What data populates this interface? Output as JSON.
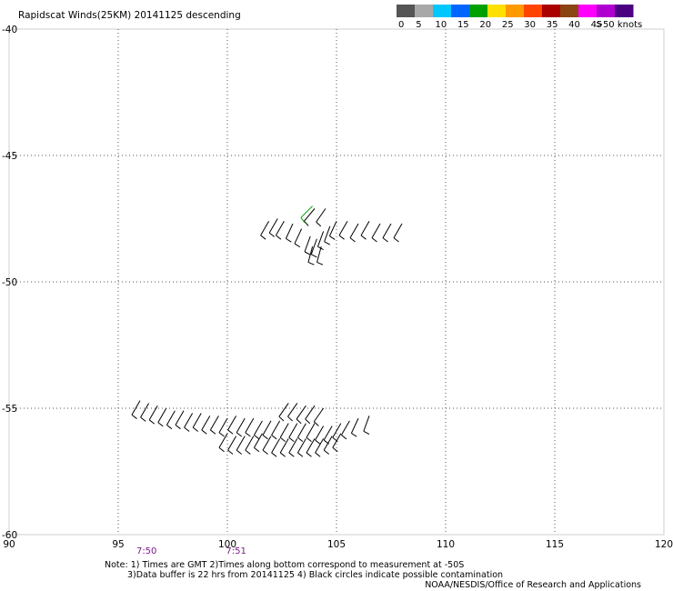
{
  "chart_data": {
    "type": "scatter",
    "title": "Rapidscat Winds(25KM) 20141125 descending",
    "xlabel": "",
    "ylabel": "",
    "xlim": [
      90,
      120
    ],
    "ylim": [
      -60,
      -40
    ],
    "x_ticks": [
      "90",
      "95",
      "100",
      "105",
      "110",
      "115",
      "120"
    ],
    "y_ticks": [
      "-40",
      "-45",
      "-50",
      "-55",
      "-60"
    ],
    "grid": true,
    "time_labels": [
      {
        "x": 96.3,
        "label": "7:50"
      },
      {
        "x": 100.4,
        "label": "7:51"
      }
    ],
    "legend": {
      "labels": [
        "0",
        "5",
        "10",
        "15",
        "20",
        "25",
        "30",
        "35",
        "40",
        "45",
        ">50 knots"
      ],
      "colors": [
        "#555555",
        "#a8a8a8",
        "#00c8ff",
        "#0066ff",
        "#00a000",
        "#ffe000",
        "#ff9900",
        "#ff4400",
        "#aa0000",
        "#8b4513",
        "#ff00ff",
        "#b000d0",
        "#4b0082"
      ]
    },
    "wind_barb_series": [
      {
        "name": "",
        "points": [
          {
            "lon": 101.9,
            "lat": -47.6,
            "dir": 240
          },
          {
            "lon": 102.3,
            "lat": -47.5,
            "dir": 240
          },
          {
            "lon": 102.6,
            "lat": -47.6,
            "dir": 240
          },
          {
            "lon": 103.0,
            "lat": -47.7,
            "dir": 245
          },
          {
            "lon": 103.4,
            "lat": -47.9,
            "dir": 245
          },
          {
            "lon": 103.8,
            "lat": -48.2,
            "dir": 250
          },
          {
            "lon": 104.1,
            "lat": -48.3,
            "dir": 250
          },
          {
            "lon": 104.4,
            "lat": -48.0,
            "dir": 250
          },
          {
            "lon": 104.7,
            "lat": -47.8,
            "dir": 250
          },
          {
            "lon": 105.0,
            "lat": -47.6,
            "dir": 245
          },
          {
            "lon": 105.5,
            "lat": -47.6,
            "dir": 240
          },
          {
            "lon": 106.0,
            "lat": -47.7,
            "dir": 240
          },
          {
            "lon": 106.5,
            "lat": -47.6,
            "dir": 240
          },
          {
            "lon": 107.0,
            "lat": -47.7,
            "dir": 240
          },
          {
            "lon": 107.5,
            "lat": -47.7,
            "dir": 240
          },
          {
            "lon": 108.0,
            "lat": -47.7,
            "dir": 240
          },
          {
            "lon": 104.0,
            "lat": -47.1,
            "dir": 230
          },
          {
            "lon": 104.5,
            "lat": -47.1,
            "dir": 235
          },
          {
            "lon": 103.9,
            "lat": -48.6,
            "dir": 255
          },
          {
            "lon": 104.3,
            "lat": -48.6,
            "dir": 255
          }
        ]
      },
      {
        "name": "",
        "points": [
          {
            "lon": 103.9,
            "lat": -47.0,
            "dir": 225
          }
        ]
      },
      {
        "name": "",
        "points": [
          {
            "lon": 96.0,
            "lat": -54.7,
            "dir": 240
          },
          {
            "lon": 96.4,
            "lat": -54.8,
            "dir": 240
          },
          {
            "lon": 96.8,
            "lat": -54.9,
            "dir": 240
          },
          {
            "lon": 97.2,
            "lat": -55.0,
            "dir": 240
          },
          {
            "lon": 97.6,
            "lat": -55.1,
            "dir": 240
          },
          {
            "lon": 98.0,
            "lat": -55.1,
            "dir": 240
          },
          {
            "lon": 98.4,
            "lat": -55.2,
            "dir": 240
          },
          {
            "lon": 98.8,
            "lat": -55.2,
            "dir": 240
          },
          {
            "lon": 99.2,
            "lat": -55.3,
            "dir": 240
          },
          {
            "lon": 99.6,
            "lat": -55.3,
            "dir": 240
          },
          {
            "lon": 100.0,
            "lat": -55.4,
            "dir": 240
          },
          {
            "lon": 100.4,
            "lat": -55.3,
            "dir": 240
          },
          {
            "lon": 100.8,
            "lat": -55.4,
            "dir": 240
          },
          {
            "lon": 101.2,
            "lat": -55.4,
            "dir": 240
          },
          {
            "lon": 101.6,
            "lat": -55.5,
            "dir": 240
          },
          {
            "lon": 102.0,
            "lat": -55.5,
            "dir": 240
          },
          {
            "lon": 102.4,
            "lat": -55.5,
            "dir": 240
          },
          {
            "lon": 102.8,
            "lat": -55.6,
            "dir": 240
          },
          {
            "lon": 103.2,
            "lat": -55.6,
            "dir": 240
          },
          {
            "lon": 103.6,
            "lat": -55.6,
            "dir": 240
          },
          {
            "lon": 104.0,
            "lat": -55.6,
            "dir": 240
          },
          {
            "lon": 104.4,
            "lat": -55.7,
            "dir": 240
          },
          {
            "lon": 104.8,
            "lat": -55.7,
            "dir": 240
          },
          {
            "lon": 105.2,
            "lat": -55.6,
            "dir": 240
          },
          {
            "lon": 105.6,
            "lat": -55.5,
            "dir": 240
          },
          {
            "lon": 106.0,
            "lat": -55.4,
            "dir": 245
          },
          {
            "lon": 106.5,
            "lat": -55.3,
            "dir": 250
          },
          {
            "lon": 102.8,
            "lat": -54.8,
            "dir": 235
          },
          {
            "lon": 103.2,
            "lat": -54.8,
            "dir": 235
          },
          {
            "lon": 103.6,
            "lat": -54.9,
            "dir": 235
          },
          {
            "lon": 104.0,
            "lat": -54.9,
            "dir": 235
          },
          {
            "lon": 104.4,
            "lat": -55.0,
            "dir": 235
          },
          {
            "lon": 100.0,
            "lat": -56.0,
            "dir": 240
          },
          {
            "lon": 100.4,
            "lat": -56.1,
            "dir": 240
          },
          {
            "lon": 100.8,
            "lat": -56.1,
            "dir": 240
          },
          {
            "lon": 101.2,
            "lat": -56.1,
            "dir": 240
          },
          {
            "lon": 101.6,
            "lat": -56.0,
            "dir": 240
          },
          {
            "lon": 102.0,
            "lat": -56.1,
            "dir": 240
          },
          {
            "lon": 102.4,
            "lat": -56.2,
            "dir": 240
          },
          {
            "lon": 102.8,
            "lat": -56.2,
            "dir": 240
          },
          {
            "lon": 103.2,
            "lat": -56.2,
            "dir": 240
          },
          {
            "lon": 103.6,
            "lat": -56.2,
            "dir": 240
          },
          {
            "lon": 104.0,
            "lat": -56.2,
            "dir": 240
          },
          {
            "lon": 104.4,
            "lat": -56.2,
            "dir": 240
          },
          {
            "lon": 104.8,
            "lat": -56.1,
            "dir": 240
          },
          {
            "lon": 105.2,
            "lat": -56.0,
            "dir": 240
          }
        ]
      }
    ],
    "series_colors": [
      "#000000",
      "#00a000",
      "#000000"
    ]
  },
  "notes": {
    "line1": "Note: 1) Times are GMT 2)Times along bottom correspond to measurement at -50S",
    "line2": "3)Data buffer is 22 hrs from 20141125 4) Black circles indicate possible contamination",
    "line3": "NOAA/NESDIS/Office of Research and Applications"
  }
}
